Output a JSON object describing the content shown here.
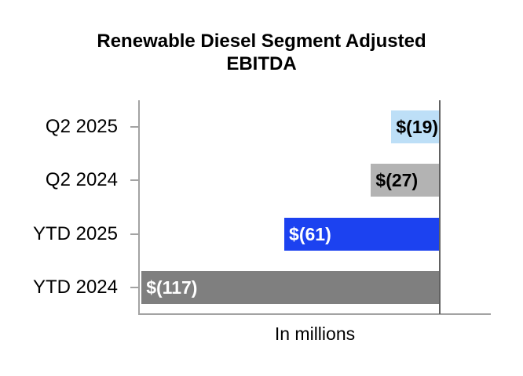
{
  "chart_data": {
    "type": "bar",
    "orientation": "horizontal",
    "title": "Renewable Diesel Segment Adjusted EBITDA",
    "title_lines": [
      "Renewable Diesel Segment Adjusted",
      "EBITDA"
    ],
    "xlabel": "In millions",
    "categories": [
      "Q2 2025",
      "Q2 2024",
      "YTD 2025",
      "YTD 2024"
    ],
    "values": [
      -19,
      -27,
      -61,
      -117
    ],
    "data_labels": [
      "$(19)",
      "$(27)",
      "$(61)",
      "$(117)"
    ],
    "bar_colors": [
      "#BDDFF7",
      "#B3B3B3",
      "#1C42F0",
      "#7F7F7F"
    ],
    "label_colors": [
      "#000000",
      "#000000",
      "#FFFFFF",
      "#FFFFFF"
    ],
    "xlim": [
      -118,
      20
    ],
    "grid": false,
    "legend": false,
    "axis_color": "#A3A3A3",
    "zero_line_color": "#616161",
    "value_unit": "millions USD"
  }
}
